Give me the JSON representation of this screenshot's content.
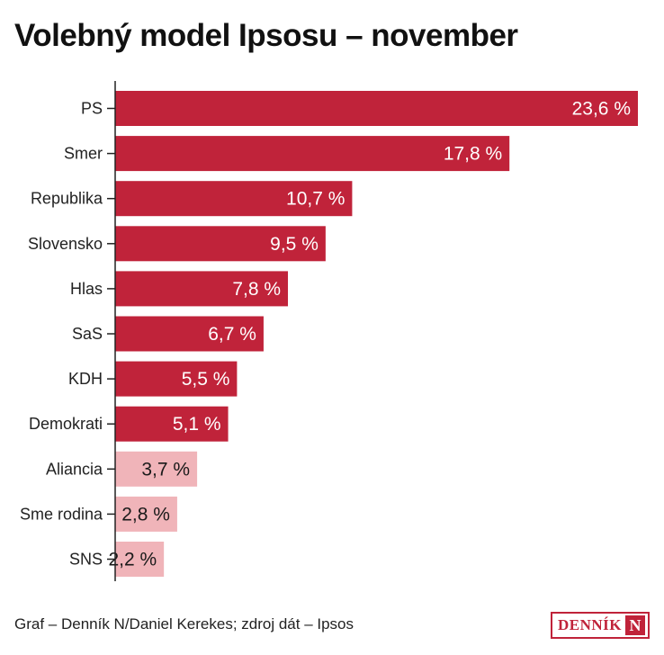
{
  "title": "Volebný model Ipsosu – november",
  "footer": {
    "credit": "Graf – Denník N/Daniel Kerekes; zdroj dát – Ipsos"
  },
  "logo": {
    "text": "DENNÍK",
    "mark": "N"
  },
  "colors": {
    "primary": "#c0233a",
    "secondary": "#f0b4b9"
  },
  "chart_data": {
    "type": "bar",
    "orientation": "horizontal",
    "title": "Volebný model Ipsosu – november",
    "categories": [
      "PS",
      "Smer",
      "Republika",
      "Slovensko",
      "Hlas",
      "SaS",
      "KDH",
      "Demokrati",
      "Aliancia",
      "Sme rodina",
      "SNS"
    ],
    "values": [
      23.6,
      17.8,
      10.7,
      9.5,
      7.8,
      6.7,
      5.5,
      5.1,
      3.7,
      2.8,
      2.2
    ],
    "labels": [
      "23,6 %",
      "17,8 %",
      "10,7 %",
      "9,5 %",
      "7,8 %",
      "6,7 %",
      "5,5 %",
      "5,1 %",
      "3,7 %",
      "2,8 %",
      "2,2 %"
    ],
    "bar_colors": [
      "primary",
      "primary",
      "primary",
      "primary",
      "primary",
      "primary",
      "primary",
      "primary",
      "secondary",
      "secondary",
      "secondary"
    ],
    "xlim": [
      0,
      23.6
    ],
    "grid": false,
    "legend": "none"
  }
}
